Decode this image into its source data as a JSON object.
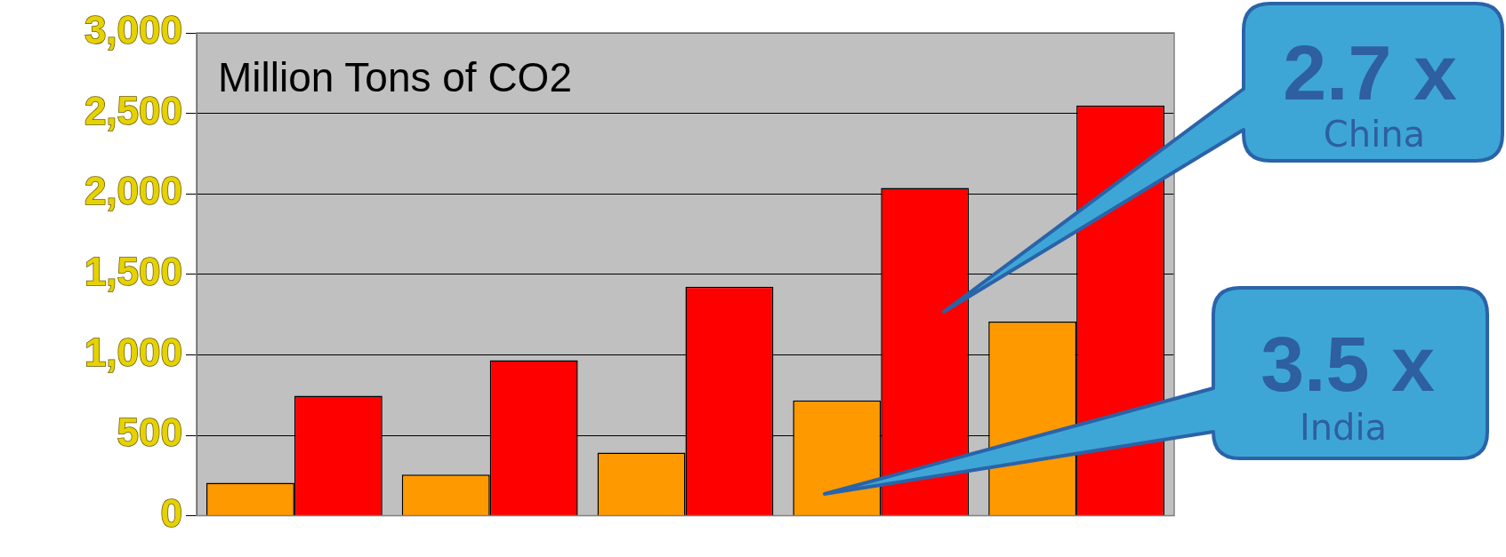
{
  "chart_data": {
    "type": "bar",
    "title": "Million Tons of CO2",
    "categories": [
      null,
      null,
      null,
      null,
      null
    ],
    "series": [
      {
        "color": "#ff9900",
        "values": [
          205,
          256,
          393,
          717,
          1206
        ]
      },
      {
        "color": "#ff0000",
        "values": [
          745,
          967,
          1423,
          2037,
          2549
        ]
      }
    ],
    "ylim": [
      0,
      3000
    ],
    "yticks": [
      {
        "value": 0,
        "label": "0"
      },
      {
        "value": 500,
        "label": "500"
      },
      {
        "value": 1000,
        "label": "1,000"
      },
      {
        "value": 1500,
        "label": "1,500"
      },
      {
        "value": 2000,
        "label": "2,000"
      },
      {
        "value": 2500,
        "label": "2,500"
      },
      {
        "value": 3000,
        "label": "3,000"
      }
    ],
    "grid": "y",
    "annotations": [
      "2.7 x",
      "China",
      "3.5 x",
      "India"
    ]
  }
}
